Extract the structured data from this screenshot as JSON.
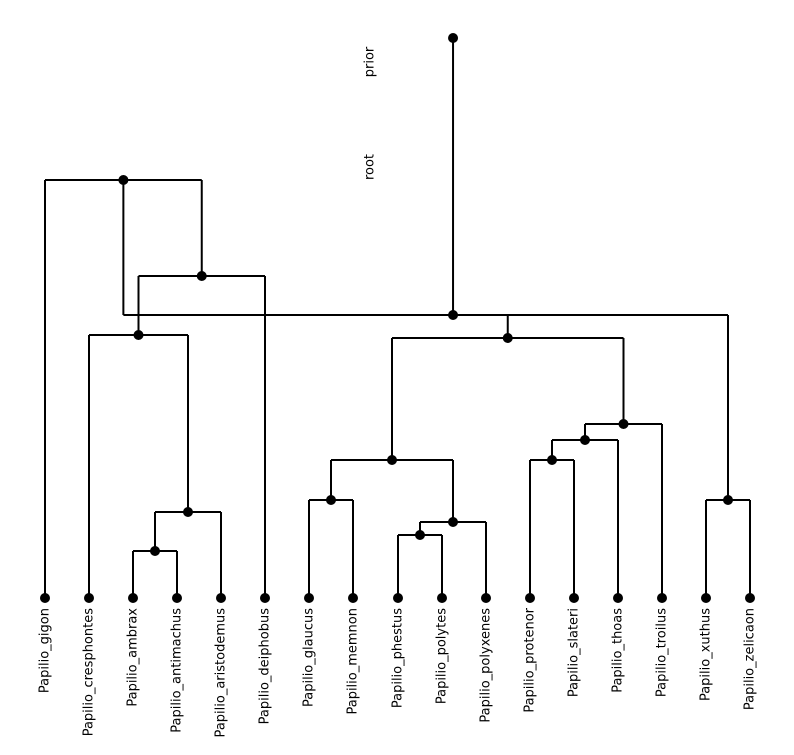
{
  "figure": {
    "type": "phylogenetic-tree",
    "orientation": "top-down"
  },
  "nodes": {
    "prior": {
      "label": "prior"
    },
    "root": {
      "label": "root"
    }
  },
  "leaves": [
    "Papilio_gigon",
    "Papilio_cresphontes",
    "Papilio_ambrax",
    "Papilio_antimachus",
    "Papilio_aristodemus",
    "Papilio_deiphobus",
    "Papilio_glaucus",
    "Papilio_memnon",
    "Papilio_phestus",
    "Papilio_polytes",
    "Papilio_polyxenes",
    "Papilio_protenor",
    "Papilio_slateri",
    "Papilio_thoas",
    "Papilio_troilus",
    "Papilio_xuthus",
    "Papilio_zelicaon"
  ],
  "tree": "((Papilio_gigon,((Papilio_cresphontes,((Papilio_ambrax,Papilio_antimachus),Papilio_aristodemus)),Papilio_deiphobus)),(((Papilio_glaucus,Papilio_memnon),((Papilio_phestus,Papilio_polytes),Papilio_polyxenes)),(((Papilio_protenor,Papilio_slateri),Papilio_thoas),Papilio_troilus)),(Papilio_xuthus,Papilio_zelicaon)))root;"
}
